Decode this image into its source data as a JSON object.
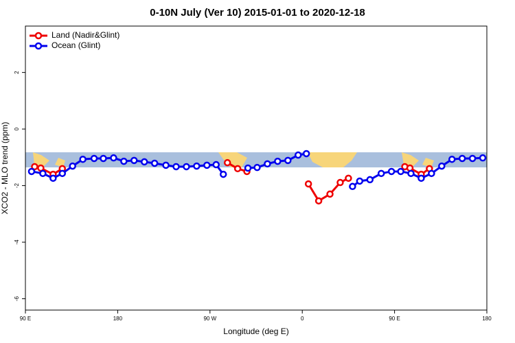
{
  "chart_data": {
    "type": "line",
    "title": "0-10N July (Ver 10)   2015-01-01 to 2020-12-18",
    "xlabel": "Longitude (deg E)",
    "ylabel": "XCO2 - MLO trend (ppm)",
    "xlim": [
      90,
      540
    ],
    "ylim": [
      -6.4,
      3.64
    ],
    "xticks": [
      {
        "value": 90,
        "label": "90 E"
      },
      180,
      {
        "value": 270,
        "label": "90 W"
      },
      {
        "value": 360,
        "label": "0"
      },
      {
        "value": 450,
        "label": "90 E"
      },
      {
        "value": 540,
        "label": "180"
      }
    ],
    "yticks": [
      2,
      0,
      -2,
      -4,
      -6
    ],
    "legend": "top-left",
    "series": [
      {
        "name": "Land (Nadir&Glint)",
        "color": "#ee0000",
        "x": [
          99,
          105,
          117,
          126,
          null,
          287,
          297,
          306,
          null,
          366,
          376,
          387,
          397,
          405,
          null,
          460,
          465,
          476,
          484
        ],
        "values": [
          -1.33,
          -1.38,
          -1.6,
          -1.4,
          null,
          -1.19,
          -1.4,
          -1.5,
          null,
          -1.94,
          -2.54,
          -2.3,
          -1.89,
          -1.74,
          null,
          -1.33,
          -1.38,
          -1.6,
          -1.4
        ]
      },
      {
        "name": "Ocean (Glint)",
        "color": "#0000ee",
        "x": [
          96,
          107,
          117,
          126,
          136,
          146,
          157,
          166,
          176,
          186,
          196,
          206,
          216,
          227,
          237,
          247,
          257,
          267,
          276,
          283,
          null,
          307,
          316,
          326,
          336,
          346,
          356,
          364,
          null,
          409,
          416,
          426,
          437,
          447,
          456,
          466,
          476,
          486,
          496,
          506,
          516,
          526,
          536
        ],
        "values": [
          -1.5,
          -1.57,
          -1.74,
          -1.57,
          -1.31,
          -1.07,
          -1.04,
          -1.04,
          -1.02,
          -1.14,
          -1.11,
          -1.16,
          -1.21,
          -1.28,
          -1.33,
          -1.33,
          -1.31,
          -1.28,
          -1.26,
          -1.6,
          null,
          -1.38,
          -1.36,
          -1.23,
          -1.14,
          -1.11,
          -0.92,
          -0.87,
          null,
          -2.03,
          -1.84,
          -1.79,
          -1.57,
          -1.5,
          -1.5,
          -1.57,
          -1.74,
          -1.57,
          -1.31,
          -1.07,
          -1.04,
          -1.04,
          -1.02
        ]
      }
    ]
  }
}
